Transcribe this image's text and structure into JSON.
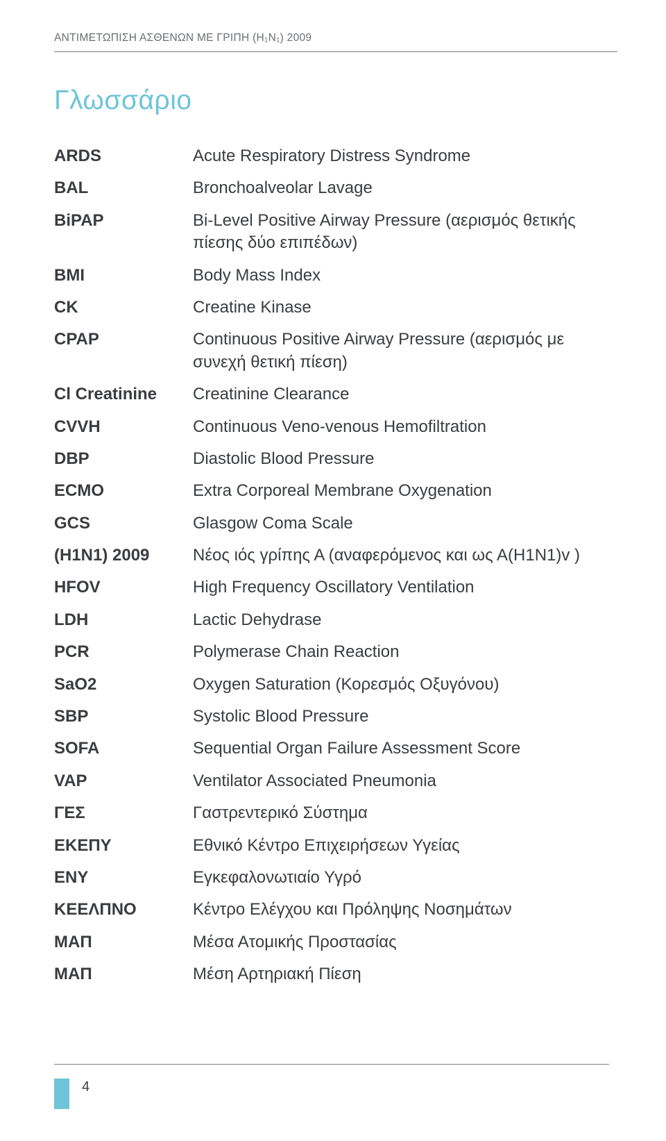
{
  "header": {
    "text": "ΑΝΤΙΜΕΤΩΠΙΣΗ ΑΣΘΕΝΩΝ ΜΕ ΓΡΙΠΗ (Η₁Ν₁) 2009"
  },
  "title": {
    "text": "Γλωσσάριο"
  },
  "glossary": {
    "rows": [
      {
        "term": "ARDS",
        "definition": "Acute Respiratory Distress Syndrome"
      },
      {
        "term": "BAL",
        "definition": "Bronchoalveolar Lavage"
      },
      {
        "term": "BiPAP",
        "definition": "Bi-Level Positive Airway Pressure (αερισμός  θετικής πίεσης δύο επιπέδων)"
      },
      {
        "term": "BMI",
        "definition": "Body Mass Index"
      },
      {
        "term": "CK",
        "definition": "Creatine Kinase"
      },
      {
        "term": "CPAP",
        "definition": "Continuous Positive Airway Pressure (αερισμός με συνεχή θετική πίεση)"
      },
      {
        "term": "Cl Creatinine",
        "definition": "Creatinine Clearance"
      },
      {
        "term": "CVVH",
        "definition": "Continuous Veno-venous Hemofiltration"
      },
      {
        "term": "DBP",
        "definition": "Diastolic Blood Pressure"
      },
      {
        "term": "ECMO",
        "definition": "Extra Corporeal Membrane Oxygenation"
      },
      {
        "term": "GCS",
        "definition": "Glasgow Coma Scale"
      },
      {
        "term": "(H1N1) 2009",
        "definition": "Νέος ιός γρίπης Α (αναφερόμενος και ως Α(Η1Ν1)v )"
      },
      {
        "term": "HFOV",
        "definition": "High Frequency Oscillatory Ventilation"
      },
      {
        "term": "LDH",
        "definition": "Lactic Dehydrase"
      },
      {
        "term": "PCR",
        "definition": "Polymerase Chain Reaction"
      },
      {
        "term": "SaO2",
        "definition": "Oxygen Saturation (Κορεσμός Οξυγόνου)"
      },
      {
        "term": "SBP",
        "definition": "Systolic Blood Pressure"
      },
      {
        "term": "SOFA",
        "definition": "Sequential Organ Failure Assessment Score"
      },
      {
        "term": "VAP",
        "definition": "Ventilator Associated Pneumonia"
      },
      {
        "term": "ΓΕΣ",
        "definition": "Γαστρεντερικό Σύστημα"
      },
      {
        "term": "ΕΚΕΠΥ",
        "definition": "Εθνικό Κέντρο Επιχειρήσεων Υγείας"
      },
      {
        "term": "ΕΝΥ",
        "definition": "Εγκεφαλονωτιαίο Υγρό"
      },
      {
        "term": "ΚΕΕΛΠΝΟ",
        "definition": "Κέντρο Ελέγχου και Πρόληψης Νοσημάτων"
      },
      {
        "term": "ΜΑΠ",
        "definition": "Μέσα Ατομικής Προστασίας"
      },
      {
        "term": "ΜΑΠ",
        "definition": "Μέση Αρτηριακή Πίεση"
      }
    ]
  },
  "footer": {
    "page_number": "4",
    "marker_color": "#6cc5d8"
  },
  "styling": {
    "background_color": "#ffffff",
    "header_text_color": "#6b6e74",
    "header_fontsize": 15.5,
    "separator_color": "#7a7d82",
    "title_color": "#6cc5d8",
    "title_fontsize": 39,
    "body_text_color": "#3a3c40",
    "body_fontsize": 24,
    "term_fontweight": 700,
    "definition_fontweight": 400,
    "page_number_fontsize": 20,
    "marker_width": 22,
    "marker_height": 44
  }
}
